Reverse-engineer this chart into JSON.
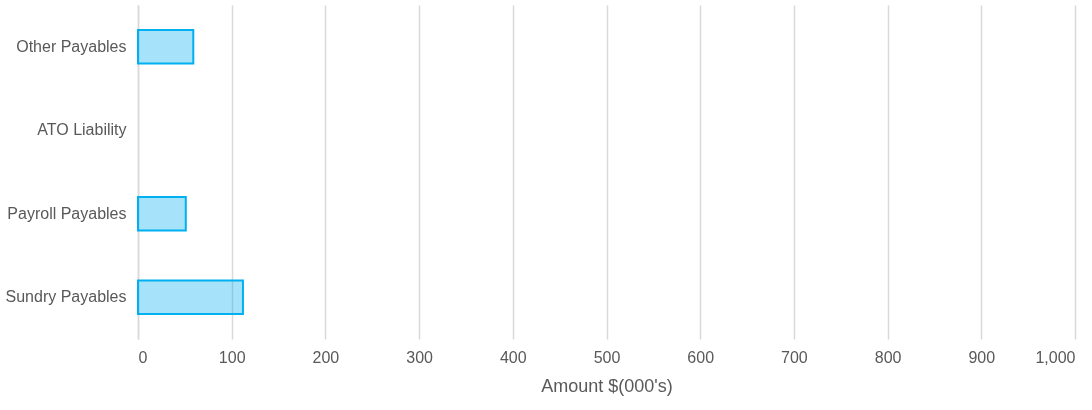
{
  "chart_data": {
    "type": "bar",
    "orientation": "horizontal",
    "xlabel": "Amount $(000's)",
    "categories": [
      "Other Payables",
      "ATO Liability",
      "Payroll Payables",
      "Sundry Payables"
    ],
    "series": [
      {
        "color": "#00b0f0",
        "values": [
          59,
          null,
          51,
          112
        ]
      }
    ],
    "xlim": [
      0,
      1000
    ],
    "xticks": [
      0,
      100,
      200,
      300,
      400,
      500,
      600,
      700,
      800,
      900,
      {
        "value": 1000,
        "label": "1,000"
      }
    ],
    "grid": "x"
  }
}
